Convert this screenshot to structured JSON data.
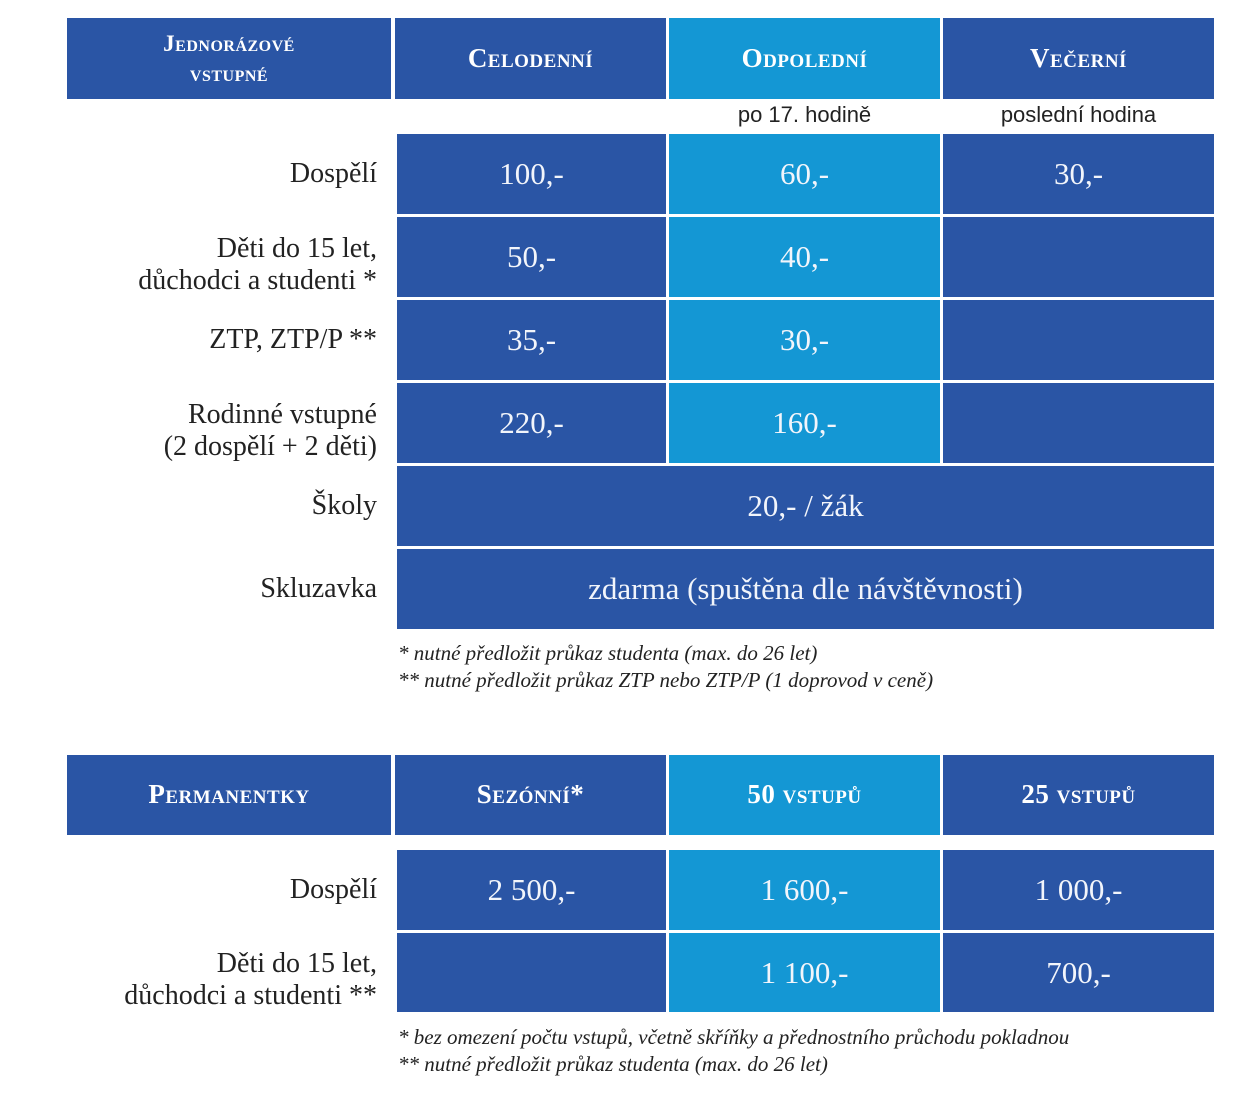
{
  "single": {
    "header": {
      "title": "Jednorázové vstupné",
      "cols": [
        "Celodenní",
        "Odpolední",
        "Večerní"
      ],
      "subnotes": [
        "po 17. hodině",
        "poslední hodina"
      ]
    },
    "rows": [
      {
        "label": "Dospělí",
        "values": [
          "100,-",
          "60,-",
          "30,-"
        ]
      },
      {
        "label_line1": "Děti do 15 let,",
        "label_line2": "důchodci a studenti *",
        "values": [
          "50,-",
          "40,-",
          ""
        ]
      },
      {
        "label": "ZTP, ZTP/P **",
        "values": [
          "35,-",
          "30,-",
          ""
        ]
      },
      {
        "label_line1": "Rodinné vstupné",
        "label_line2": "(2 dospělí + 2 děti)",
        "values": [
          "220,-",
          "160,-",
          ""
        ]
      },
      {
        "label": "Školy",
        "value": "20,- / žák"
      },
      {
        "label": "Skluzavka",
        "value": "zdarma (spuštěna dle návštěvnosti)"
      }
    ],
    "notes": [
      "* nutné předložit průkaz studenta (max. do 26 let)",
      "** nutné předložit průkaz ZTP nebo ZTP/P (1 doprovod v ceně)"
    ]
  },
  "passes": {
    "header": {
      "title": "Permanentky",
      "cols": [
        "Sezónní*",
        "50 vstupů",
        "25 vstupů"
      ]
    },
    "rows": [
      {
        "label": "Dospělí",
        "values": [
          "2 500,-",
          "1 600,-",
          "1 000,-"
        ]
      },
      {
        "label_line1": "Děti do 15 let,",
        "label_line2": "důchodci a studenti **",
        "values": [
          "",
          "1 100,-",
          "700,-"
        ]
      }
    ],
    "notes": [
      "* bez omezení počtu vstupů, včetně skříňky a přednostního průchodu pokladnou",
      "** nutné předložit průkaz studenta (max. do 26 let)"
    ]
  },
  "colors": {
    "primary": "#2a55a5",
    "accent": "#1497d4"
  }
}
